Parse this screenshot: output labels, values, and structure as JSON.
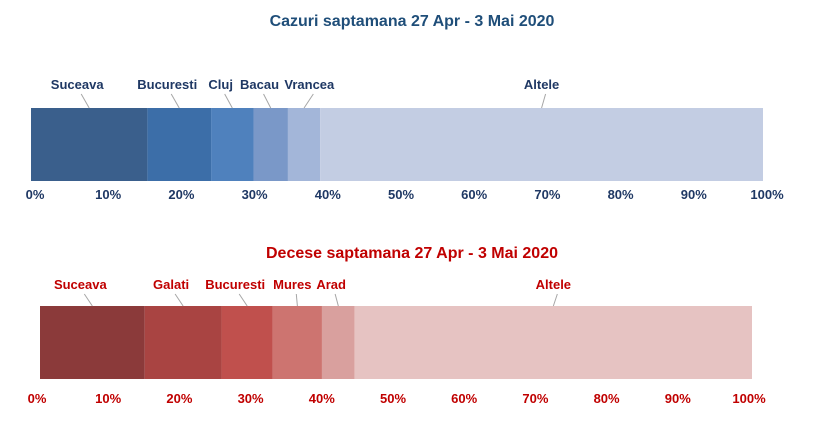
{
  "chart_data": [
    {
      "type": "bar",
      "orientation": "horizontal-stacked-100",
      "title": "Cazuri saptamana 27 Apr - 3 Mai 2020",
      "title_color": "#1f4e79",
      "text_color": "#1f3864",
      "axis": {
        "min": 0,
        "max": 100,
        "step": 10,
        "tick_suffix": "%"
      },
      "tick_labels": [
        "0%",
        "10%",
        "20%",
        "30%",
        "40%",
        "50%",
        "60%",
        "70%",
        "80%",
        "90%",
        "100%"
      ],
      "segments": [
        {
          "name": "Suceava",
          "value": 15.9,
          "color": "#3a5f8c"
        },
        {
          "name": "Bucuresti",
          "value": 8.7,
          "color": "#3c6ea8"
        },
        {
          "name": "Cluj",
          "value": 5.8,
          "color": "#4f81bd"
        },
        {
          "name": "Bacau",
          "value": 4.7,
          "color": "#7a98c8"
        },
        {
          "name": "Vrancea",
          "value": 4.4,
          "color": "#a3b6d9"
        },
        {
          "name": "Altele",
          "value": 60.5,
          "color": "#c3cde3"
        }
      ]
    },
    {
      "type": "bar",
      "orientation": "horizontal-stacked-100",
      "title": "Decese saptamana 27 Apr - 3 Mai 2020",
      "title_color": "#c00000",
      "text_color": "#c00000",
      "axis": {
        "min": 0,
        "max": 100,
        "step": 10,
        "tick_suffix": "%"
      },
      "tick_labels": [
        "0%",
        "10%",
        "20%",
        "30%",
        "40%",
        "50%",
        "60%",
        "70%",
        "80%",
        "90%",
        "100%"
      ],
      "segments": [
        {
          "name": "Suceava",
          "value": 14.7,
          "color": "#8b3a3a"
        },
        {
          "name": "Galati",
          "value": 10.8,
          "color": "#a94442"
        },
        {
          "name": "Bucuresti",
          "value": 7.2,
          "color": "#c0504d"
        },
        {
          "name": "Mures",
          "value": 6.9,
          "color": "#cd7470"
        },
        {
          "name": "Arad",
          "value": 4.6,
          "color": "#d9a09e"
        },
        {
          "name": "Altele",
          "value": 55.8,
          "color": "#e6c3c2"
        }
      ]
    }
  ]
}
